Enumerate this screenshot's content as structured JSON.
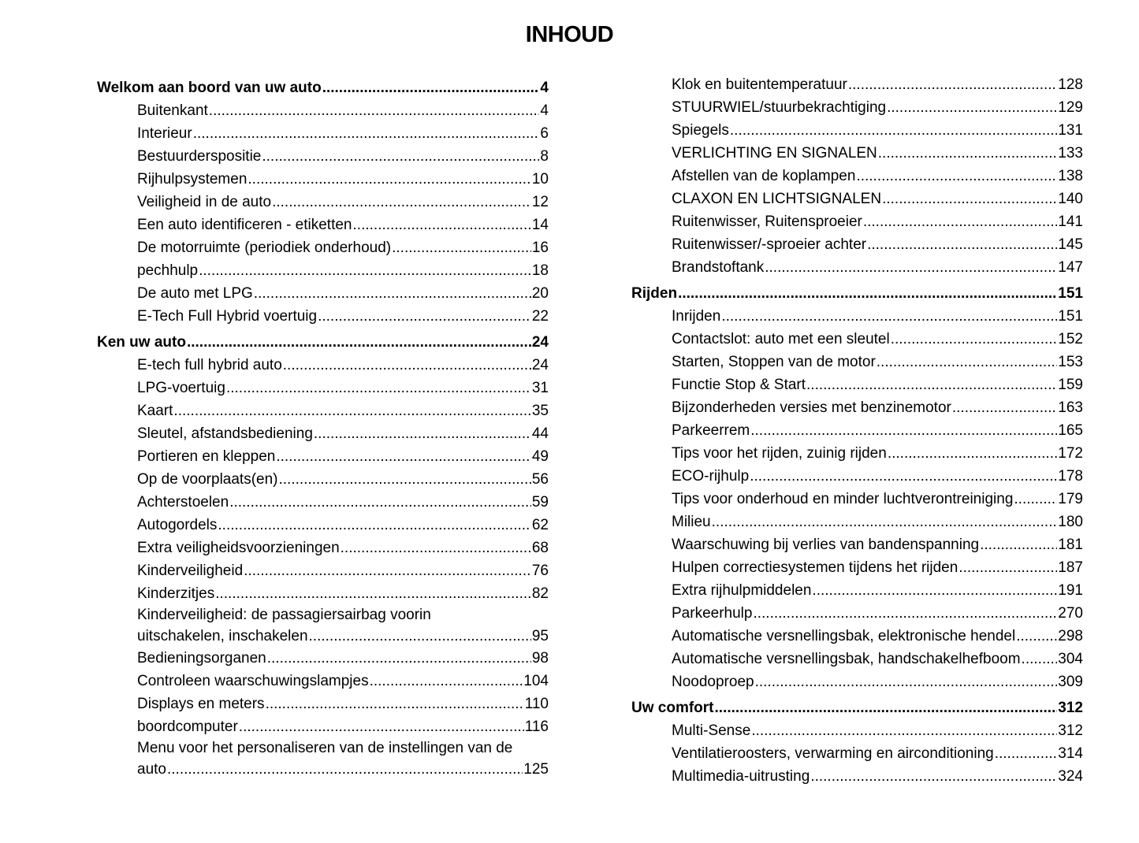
{
  "title": "INHOUD",
  "left": [
    {
      "type": "head",
      "text": "Welkom aan boord van uw auto",
      "page": "4"
    },
    {
      "type": "item",
      "text": "Buitenkant",
      "page": "4"
    },
    {
      "type": "item",
      "text": "Interieur",
      "page": "6"
    },
    {
      "type": "item",
      "text": "Bestuurderspositie",
      "page": "8"
    },
    {
      "type": "item",
      "text": "Rijhulpsystemen ",
      "page": "10"
    },
    {
      "type": "item",
      "text": "Veiligheid in de auto ",
      "page": "12"
    },
    {
      "type": "item",
      "text": "Een auto identificeren - etiketten",
      "page": "14"
    },
    {
      "type": "item",
      "text": "De motorruimte (periodiek onderhoud)",
      "page": "16"
    },
    {
      "type": "item",
      "text": "pechhulp ",
      "page": "18"
    },
    {
      "type": "item",
      "text": "De auto met LPG",
      "page": "20"
    },
    {
      "type": "item",
      "text": "E-Tech Full Hybrid voertuig ",
      "page": "22"
    },
    {
      "type": "head",
      "text": "Ken uw auto ",
      "page": "24"
    },
    {
      "type": "item",
      "text": "E-tech full hybrid auto",
      "page": "24"
    },
    {
      "type": "item",
      "text": "LPG-voertuig",
      "page": "31"
    },
    {
      "type": "item",
      "text": "Kaart ",
      "page": "35"
    },
    {
      "type": "item",
      "text": "Sleutel, afstandsbediening ",
      "page": "44"
    },
    {
      "type": "item",
      "text": "Portieren en kleppen ",
      "page": "49"
    },
    {
      "type": "item",
      "text": "Op de voorplaats(en)",
      "page": "56"
    },
    {
      "type": "item",
      "text": "Achterstoelen",
      "page": "59"
    },
    {
      "type": "item",
      "text": "Autogordels",
      "page": "62"
    },
    {
      "type": "item",
      "text": "Extra veiligheidsvoorzieningen",
      "page": "68"
    },
    {
      "type": "item",
      "text": "Kinderveiligheid ",
      "page": "76"
    },
    {
      "type": "item",
      "text": "Kinderzitjes ",
      "page": "82"
    },
    {
      "type": "multi",
      "line1": "Kinderveiligheid: de passagiersairbag voorin",
      "text": "uitschakelen, inschakelen",
      "page": "95"
    },
    {
      "type": "item",
      "text": "Bedieningsorganen",
      "page": "98"
    },
    {
      "type": "item",
      "text": "Controleen waarschuwingslampjes ",
      "page": "104"
    },
    {
      "type": "item",
      "text": "Displays en meters ",
      "page": "110"
    },
    {
      "type": "item",
      "text": "boordcomputer",
      "page": "116"
    },
    {
      "type": "multi",
      "line1": "Menu voor het personaliseren van de instellingen van de",
      "text": "auto",
      "page": "125"
    }
  ],
  "right": [
    {
      "type": "item",
      "text": "Klok en buitentemperatuur ",
      "page": "128"
    },
    {
      "type": "item",
      "text": "STUURWIEL/stuurbekrachtiging ",
      "page": "129"
    },
    {
      "type": "item",
      "text": "Spiegels",
      "page": "131"
    },
    {
      "type": "item",
      "text": "VERLICHTING EN SIGNALEN ",
      "page": "133"
    },
    {
      "type": "item",
      "text": "Afstellen van de koplampen ",
      "page": "138"
    },
    {
      "type": "item",
      "text": "CLAXON EN LICHTSIGNALEN ",
      "page": "140"
    },
    {
      "type": "item",
      "text": "Ruitenwisser, Ruitensproeier",
      "page": "141"
    },
    {
      "type": "item",
      "text": "Ruitenwisser/-sproeier achter",
      "page": "145"
    },
    {
      "type": "item",
      "text": "Brandstoftank",
      "page": "147"
    },
    {
      "type": "head",
      "text": "Rijden",
      "page": "151"
    },
    {
      "type": "item",
      "text": "Inrijden",
      "page": "151"
    },
    {
      "type": "item",
      "text": "Contactslot: auto met een sleutel ",
      "page": "152"
    },
    {
      "type": "item",
      "text": "Starten, Stoppen van de motor",
      "page": "153"
    },
    {
      "type": "item",
      "text": "Functie Stop & Start",
      "page": "159"
    },
    {
      "type": "item",
      "text": "Bijzonderheden versies met benzinemotor ",
      "page": "163"
    },
    {
      "type": "item",
      "text": "Parkeerrem",
      "page": "165"
    },
    {
      "type": "item",
      "text": "Tips voor het rijden, zuinig rijden",
      "page": "172"
    },
    {
      "type": "item",
      "text": "ECO-rijhulp ",
      "page": "178"
    },
    {
      "type": "item",
      "text": "Tips voor onderhoud en minder luchtverontreiniging ",
      "page": "179"
    },
    {
      "type": "item",
      "text": "Milieu ",
      "page": "180"
    },
    {
      "type": "item",
      "text": "Waarschuwing bij verlies van bandenspanning",
      "page": "181"
    },
    {
      "type": "item",
      "text": "Hulpen correctiesystemen tijdens het rijden",
      "page": "187"
    },
    {
      "type": "item",
      "text": "Extra rijhulpmiddelen ",
      "page": "191"
    },
    {
      "type": "item",
      "text": "Parkeerhulp ",
      "page": "270"
    },
    {
      "type": "item",
      "text": "Automatische versnellingsbak, elektronische hendel ",
      "page": "298"
    },
    {
      "type": "item",
      "text": "Automatische versnellingsbak, handschakelhefboom",
      "page": "304"
    },
    {
      "type": "item",
      "text": "Noodoproep ",
      "page": "309"
    },
    {
      "type": "head",
      "text": "Uw comfort",
      "page": "312"
    },
    {
      "type": "item",
      "text": "Multi-Sense",
      "page": "312"
    },
    {
      "type": "item",
      "text": "Ventilatieroosters, verwarming en airconditioning ",
      "page": "314"
    },
    {
      "type": "item",
      "text": "Multimedia-uitrusting ",
      "page": "324"
    }
  ]
}
